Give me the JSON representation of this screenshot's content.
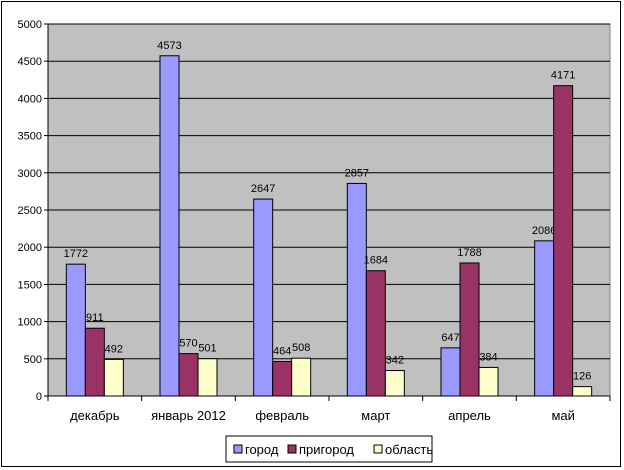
{
  "chart_data": {
    "type": "bar",
    "categories": [
      "декабрь",
      "январь 2012",
      "февраль",
      "март",
      "апрель",
      "май"
    ],
    "series": [
      {
        "name": "город",
        "color": "#9999ff",
        "values": [
          1772,
          4573,
          2647,
          2857,
          647,
          2086
        ]
      },
      {
        "name": "пригород",
        "color": "#993366",
        "values": [
          911,
          570,
          464,
          1684,
          1788,
          4171
        ]
      },
      {
        "name": "область",
        "color": "#ffffcc",
        "values": [
          492,
          501,
          508,
          342,
          384,
          126
        ]
      }
    ],
    "ylim": [
      0,
      5000
    ],
    "yticks": [
      "0",
      "500",
      "1000",
      "1500",
      "2000",
      "2500",
      "3000",
      "3500",
      "4000",
      "4500",
      "5000"
    ],
    "plot_background": "#c0c0c0",
    "grid": true,
    "legend": "bottom"
  }
}
